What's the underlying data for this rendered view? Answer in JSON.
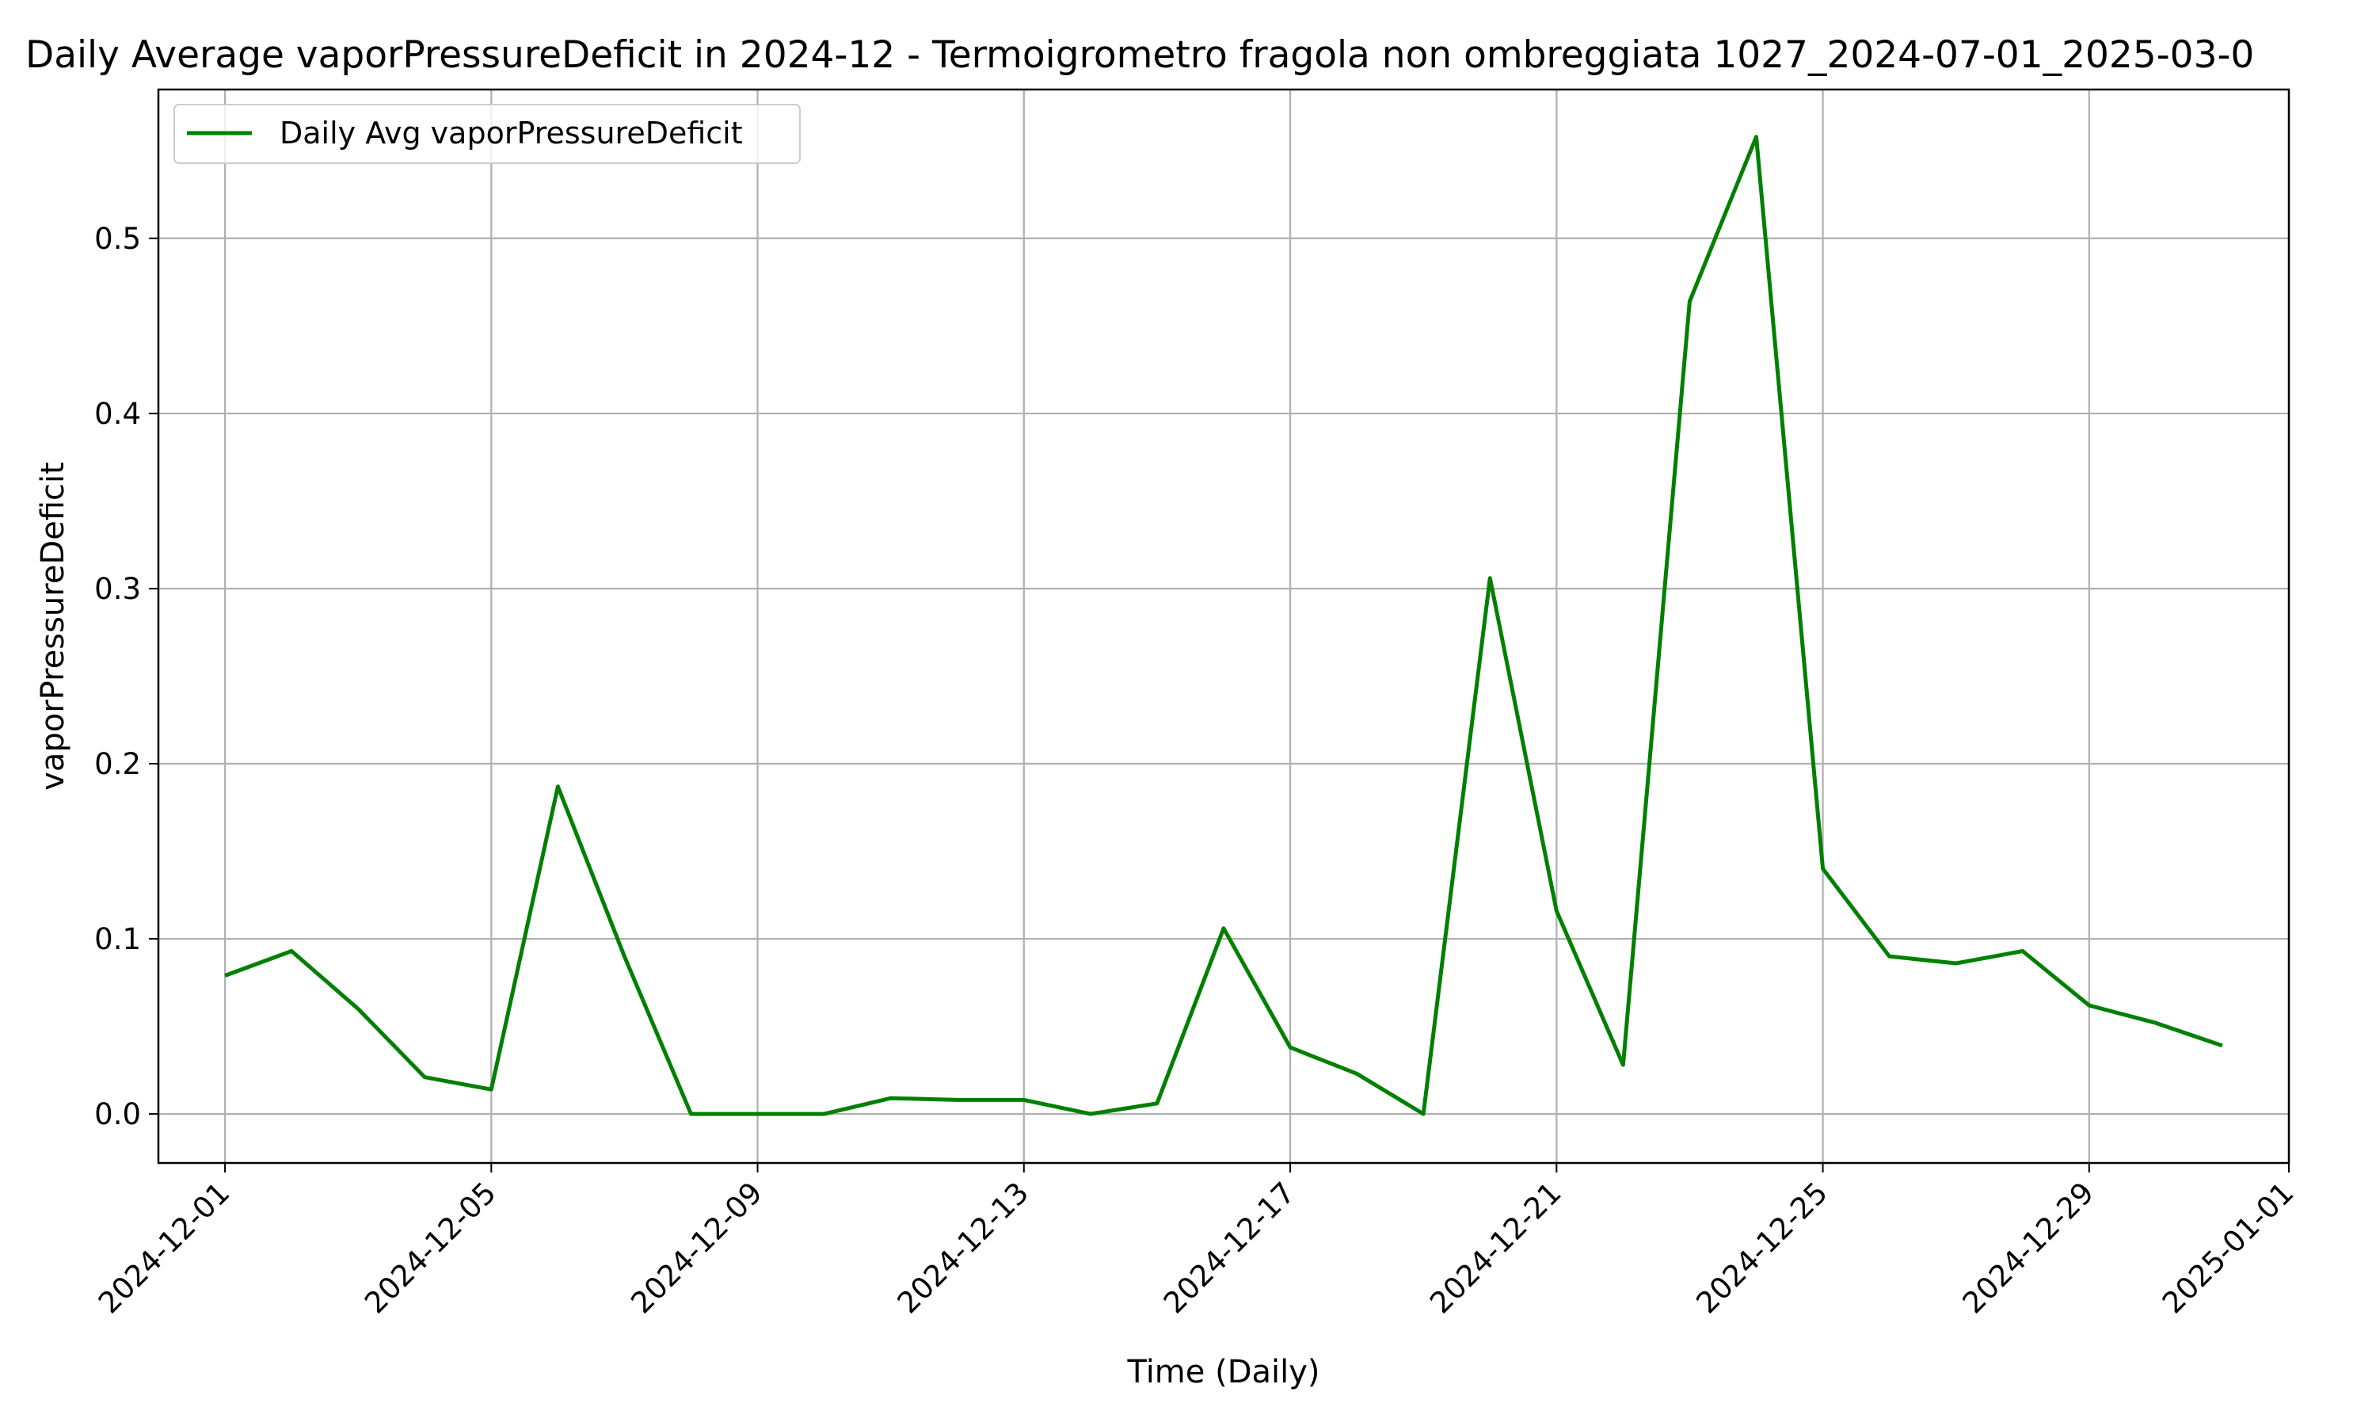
{
  "chart_data": {
    "type": "line",
    "title": "Daily Average vaporPressureDeficit in 2024-12 - Termoigrometro fragola non ombreggiata 1027_2024-07-01_2025-03-0",
    "xlabel": "Time (Daily)",
    "ylabel": "vaporPressureDeficit",
    "xlim": [
      "2024-11-30",
      "2025-01-01"
    ],
    "ylim": [
      -0.028,
      0.585
    ],
    "grid": true,
    "legend_position": "top-left",
    "x_ticks": [
      "2024-12-01",
      "2024-12-05",
      "2024-12-09",
      "2024-12-13",
      "2024-12-17",
      "2024-12-21",
      "2024-12-25",
      "2024-12-29",
      "2025-01-01"
    ],
    "y_ticks": [
      "0.0",
      "0.1",
      "0.2",
      "0.3",
      "0.4",
      "0.5"
    ],
    "series": [
      {
        "name": "Daily Avg vaporPressureDeficit",
        "color": "#008000",
        "x": [
          "2024-12-01",
          "2024-12-02",
          "2024-12-03",
          "2024-12-04",
          "2024-12-05",
          "2024-12-06",
          "2024-12-07",
          "2024-12-08",
          "2024-12-09",
          "2024-12-10",
          "2024-12-11",
          "2024-12-12",
          "2024-12-13",
          "2024-12-14",
          "2024-12-15",
          "2024-12-16",
          "2024-12-17",
          "2024-12-18",
          "2024-12-19",
          "2024-12-20",
          "2024-12-21",
          "2024-12-22",
          "2024-12-23",
          "2024-12-24",
          "2024-12-25",
          "2024-12-26",
          "2024-12-27",
          "2024-12-28",
          "2024-12-29",
          "2024-12-30",
          "2024-12-31"
        ],
        "values": [
          0.079,
          0.093,
          0.06,
          0.021,
          0.014,
          0.187,
          0.09,
          0.0,
          0.0,
          0.0,
          0.009,
          0.008,
          0.008,
          0.0,
          0.006,
          0.106,
          0.038,
          0.023,
          0.0,
          0.306,
          0.116,
          0.028,
          0.464,
          0.558,
          0.14,
          0.09,
          0.086,
          0.093,
          0.062,
          0.052,
          0.039
        ]
      }
    ]
  }
}
